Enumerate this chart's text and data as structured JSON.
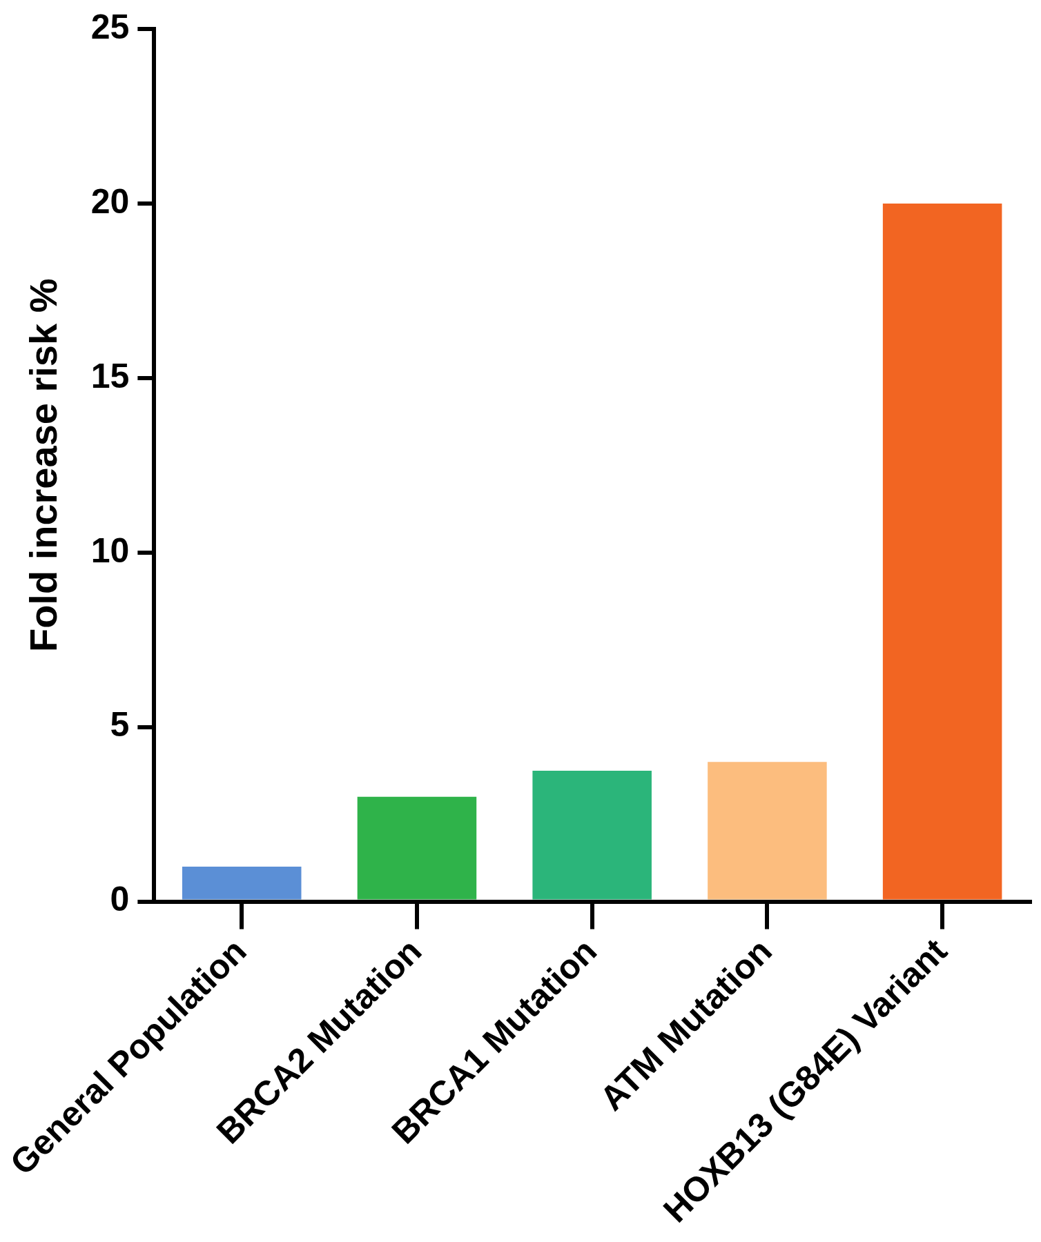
{
  "chart_data": {
    "type": "bar",
    "ylabel": "Fold increase risk %",
    "categories": [
      "General Population",
      "BRCA2 Mutation",
      "BRCA1 Mutation",
      "ATM Mutation",
      "HOXB13 (G84E) Variant"
    ],
    "values": [
      1,
      3,
      3.75,
      4,
      20
    ],
    "colors": [
      "#5b8fd6",
      "#2fb34a",
      "#2bb57a",
      "#fcbd7e",
      "#f26522"
    ],
    "ylim": [
      0,
      25
    ],
    "yticks": [
      0,
      5,
      10,
      15,
      20,
      25
    ],
    "grid": false,
    "legend": false
  }
}
